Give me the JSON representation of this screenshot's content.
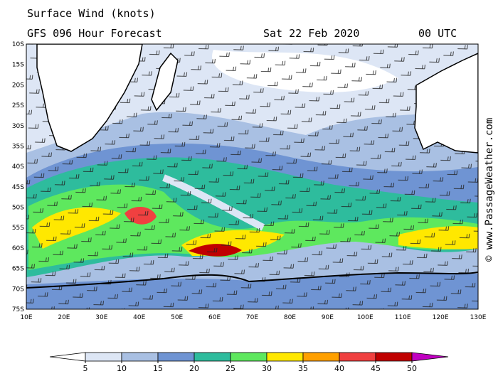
{
  "header": {
    "title": "Surface Wind (knots)",
    "subtitle": "GFS 096 Hour Forecast",
    "date": "Sat 22 Feb 2020",
    "time": "00 UTC"
  },
  "map": {
    "lat_labels": [
      "10S",
      "15S",
      "20S",
      "25S",
      "30S",
      "35S",
      "40S",
      "45S",
      "50S",
      "55S",
      "60S",
      "65S",
      "70S",
      "75S"
    ],
    "lon_labels": [
      "10E",
      "20E",
      "30E",
      "40E",
      "50E",
      "60E",
      "70E",
      "80E",
      "90E",
      "100E",
      "110E",
      "120E",
      "130E"
    ]
  },
  "colorbar": {
    "ticks": [
      5,
      10,
      15,
      20,
      25,
      30,
      35,
      40,
      45,
      50
    ],
    "colors": [
      "#ffffff",
      "#dde6f5",
      "#a9c0e3",
      "#6f94d3",
      "#2ebc9d",
      "#5ee85e",
      "#ffe800",
      "#ffa000",
      "#f04040",
      "#c00000",
      "#c000c0"
    ]
  },
  "watermark": "© www.PassageWeather.com"
}
